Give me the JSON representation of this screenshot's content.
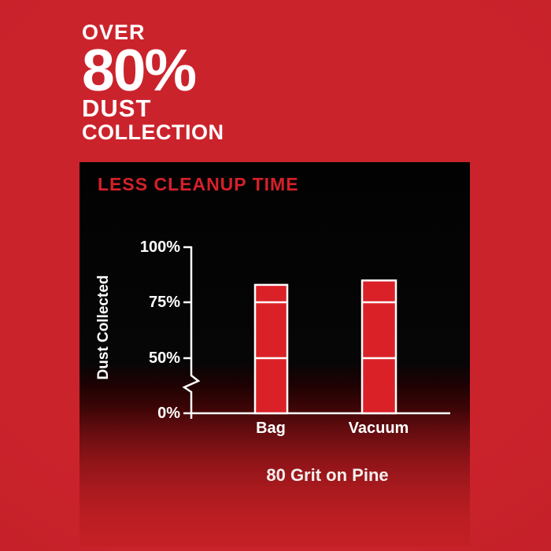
{
  "headline": {
    "line1": "OVER",
    "line2": "80%",
    "line3": "DUST",
    "line4": "COLLECTION"
  },
  "chart_data": {
    "type": "bar",
    "title": "LESS CLEANUP TIME",
    "categories": [
      "Bag",
      "Vacuum"
    ],
    "values": [
      83,
      85
    ],
    "ylabel": "Dust Collected",
    "ylim": [
      0,
      100
    ],
    "yticks": [
      0,
      50,
      75,
      100
    ],
    "ytick_labels": [
      "0%",
      "50%",
      "75%",
      "100%"
    ],
    "axis_break": {
      "between": [
        0,
        50
      ]
    },
    "bar_gridlines_at": [
      50,
      75
    ],
    "caption": "80 Grit on Pine",
    "legend": "none",
    "colors": {
      "bar_fill": "#da2128",
      "bar_outline": "#ffffff",
      "axis": "#ffffff",
      "title": "#d6202a",
      "panel_top": "#000000",
      "panel_bottom": "#c42025",
      "background": "#c8222b",
      "headline_text": "#ffffff"
    }
  }
}
